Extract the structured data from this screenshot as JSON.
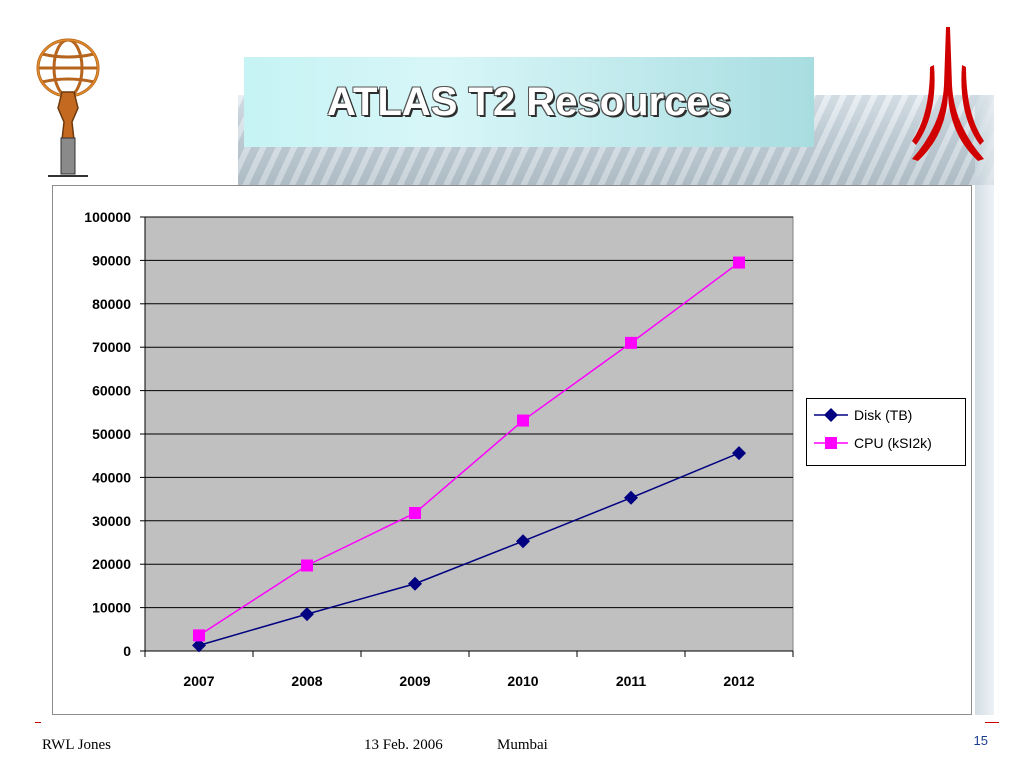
{
  "slide": {
    "title": "ATLAS T2 Resources",
    "footer_author": "RWL Jones",
    "footer_date": "13 Feb. 2006",
    "footer_location": "Mumbai",
    "page_number": "15"
  },
  "colors": {
    "plot_area": "#c0c0c0",
    "disk_series": "#000080",
    "cpu_series": "#ff00ff",
    "title_text": "#ffffff",
    "footer_rule": "#cc0000",
    "page_number": "#1a3c8f"
  },
  "chart_data": {
    "type": "line",
    "categories": [
      "2007",
      "2008",
      "2009",
      "2010",
      "2011",
      "2012"
    ],
    "series": [
      {
        "name": "Disk (TB)",
        "marker": "diamond",
        "color": "#000080",
        "values": [
          1300,
          8500,
          15500,
          25300,
          35300,
          45600
        ]
      },
      {
        "name": "CPU (kSI2k)",
        "marker": "square",
        "color": "#ff00ff",
        "values": [
          3600,
          19700,
          31800,
          53100,
          71000,
          89500
        ]
      }
    ],
    "ylim": [
      0,
      100000
    ],
    "yticks": [
      "0",
      "10000",
      "20000",
      "30000",
      "40000",
      "50000",
      "60000",
      "70000",
      "80000",
      "90000",
      "100000"
    ],
    "grid": true,
    "legend_position": "right"
  }
}
